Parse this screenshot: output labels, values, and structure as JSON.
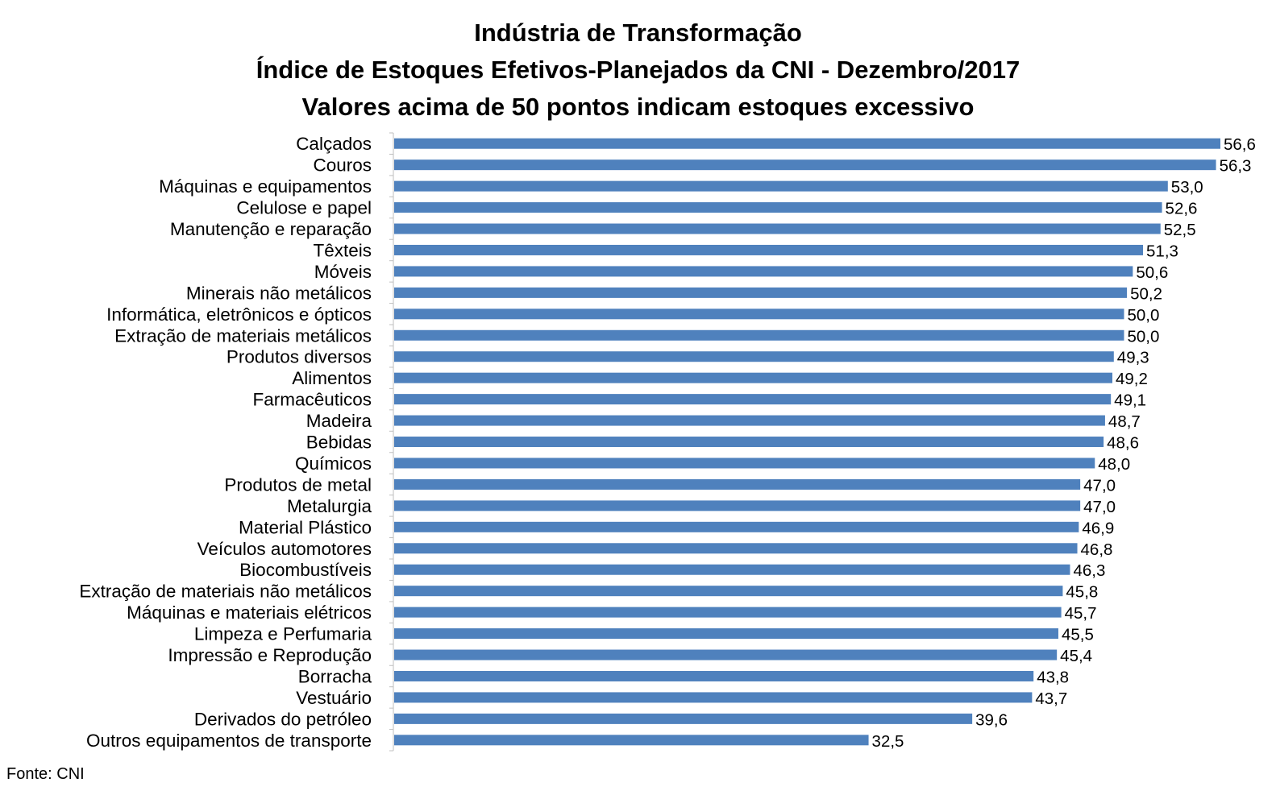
{
  "source": "Fonte: CNI",
  "chart_data": {
    "type": "bar",
    "orientation": "horizontal",
    "title": "Indústria de Transformação",
    "subtitle": "Índice de Estoques Efetivos-Planejados da CNI - Dezembro/2017",
    "subtitle2": "Valores acima de 50 pontos indicam estoques excessivo",
    "xlabel": "",
    "ylabel": "",
    "bar_color": "#4f81bd",
    "axis_color": "#bfbfbf",
    "grid": false,
    "legend": "none",
    "xlim": [
      0,
      56.6
    ],
    "categories": [
      "Calçados",
      "Couros",
      "Máquinas e equipamentos",
      "Celulose e papel",
      "Manutenção e reparação",
      "Têxteis",
      "Móveis",
      "Minerais não metálicos",
      "Informática, eletrônicos e ópticos",
      "Extração de materiais metálicos",
      "Produtos diversos",
      "Alimentos",
      "Farmacêuticos",
      "Madeira",
      "Bebidas",
      "Químicos",
      "Produtos de metal",
      "Metalurgia",
      "Material Plástico",
      "Veículos automotores",
      "Biocombustíveis",
      "Extração de materiais não metálicos",
      "Máquinas e materiais elétricos",
      "Limpeza e Perfumaria",
      "Impressão e Reprodução",
      "Borracha",
      "Vestuário",
      "Derivados do petróleo",
      "Outros equipamentos de transporte"
    ],
    "values": [
      56.6,
      56.3,
      53.0,
      52.6,
      52.5,
      51.3,
      50.6,
      50.2,
      50.0,
      50.0,
      49.3,
      49.2,
      49.1,
      48.7,
      48.6,
      48.0,
      47.0,
      47.0,
      46.9,
      46.8,
      46.3,
      45.8,
      45.7,
      45.5,
      45.4,
      43.8,
      43.7,
      39.6,
      32.5
    ],
    "value_labels": [
      "56,6",
      "56,3",
      "53,0",
      "52,6",
      "52,5",
      "51,3",
      "50,6",
      "50,2",
      "50,0",
      "50,0",
      "49,3",
      "49,2",
      "49,1",
      "48,7",
      "48,6",
      "48,0",
      "47,0",
      "47,0",
      "46,9",
      "46,8",
      "46,3",
      "45,8",
      "45,7",
      "45,5",
      "45,4",
      "43,8",
      "43,7",
      "39,6",
      "32,5"
    ]
  }
}
